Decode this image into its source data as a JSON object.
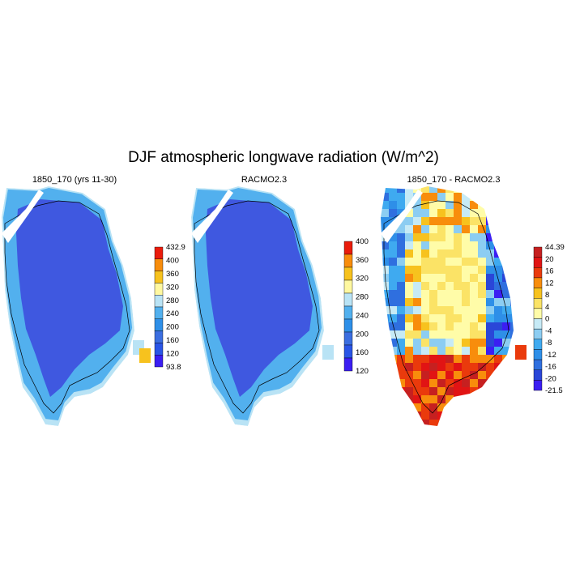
{
  "figure": {
    "title": "DJF atmospheric longwave radiation (W/m^2)"
  },
  "colors": {
    "abs_scale": [
      "#3b1ef2",
      "#2a55e6",
      "#3b6ee0",
      "#2e8fe8",
      "#52b0ee",
      "#b9e3f5",
      "#fff8a0",
      "#f7c21e",
      "#f88d0c",
      "#ea1c0c",
      "#c01818"
    ],
    "diff_scale": [
      "#3b1ef2",
      "#2a46d8",
      "#2f6fdf",
      "#2e8fe8",
      "#3faaf0",
      "#8ccdf2",
      "#c6eaf6",
      "#fffca8",
      "#fbe366",
      "#f7c21e",
      "#f88d0c",
      "#ea3a0c",
      "#e11414",
      "#c62020"
    ],
    "ice_fill": "#3f58e0",
    "edge_fill": "#52b0ee",
    "coast_fill": "#b9e3f5"
  },
  "panels": [
    {
      "title": "1850_170 (yrs 11-30)",
      "colorbar_labels": [
        "432.9",
        "400",
        "360",
        "320",
        "280",
        "240",
        "200",
        "160",
        "120",
        "93.8"
      ]
    },
    {
      "title": "RACMO2.3",
      "colorbar_labels": [
        "400",
        "360",
        "320",
        "280",
        "240",
        "200",
        "160",
        "120"
      ]
    },
    {
      "title": "1850_170 - RACMO2.3",
      "colorbar_labels": [
        "44.39",
        "20",
        "16",
        "12",
        "8",
        "4",
        "0",
        "-4",
        "-8",
        "-12",
        "-16",
        "-20",
        "-21.5"
      ]
    }
  ]
}
